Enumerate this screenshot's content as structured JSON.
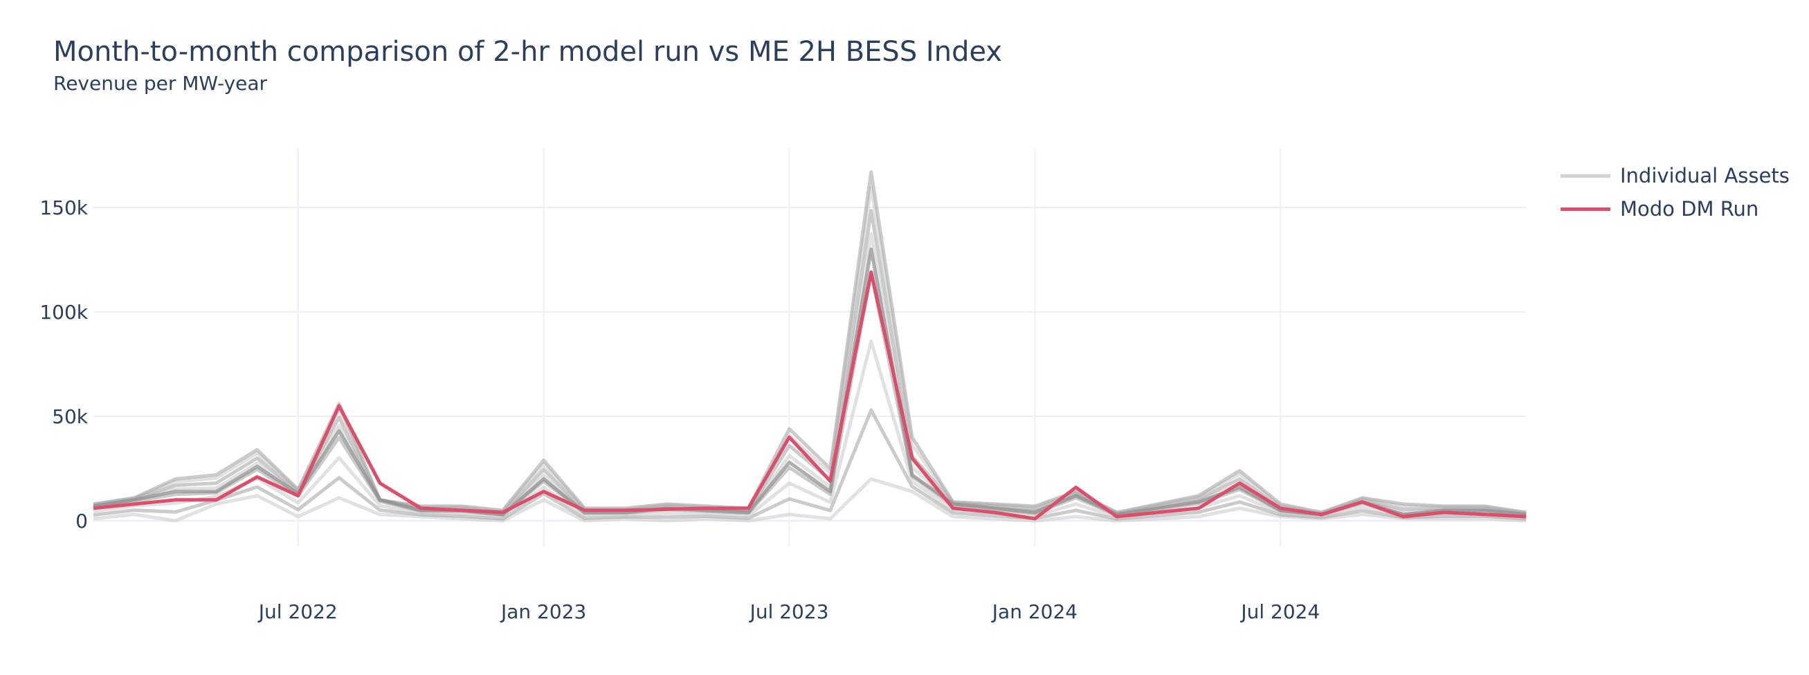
{
  "header": {
    "title": "Month-to-month comparison of 2-hr model run vs ME 2H BESS Index",
    "subtitle": "Revenue per MW-year"
  },
  "legend": {
    "items": [
      {
        "label": "Individual Assets",
        "color": "#d3d3d3"
      },
      {
        "label": "Modo DM Run",
        "color": "#dc4f6a"
      }
    ]
  },
  "axes": {
    "y_ticks": [
      "0",
      "50k",
      "100k",
      "150k"
    ],
    "x_ticks": [
      "Jul 2022",
      "Jan 2023",
      "Jul 2023",
      "Jan 2024",
      "Jul 2024"
    ]
  },
  "chart_data": {
    "type": "line",
    "title": "Month-to-month comparison of 2-hr model run vs ME 2H BESS Index",
    "subtitle": "Revenue per MW-year",
    "xlabel": "",
    "ylabel": "",
    "ylim": [
      -12000,
      178000
    ],
    "grid": true,
    "legend_position": "right-top",
    "x": [
      "2022-02",
      "2022-03",
      "2022-04",
      "2022-05",
      "2022-06",
      "2022-07",
      "2022-08",
      "2022-09",
      "2022-10",
      "2022-11",
      "2022-12",
      "2023-01",
      "2023-02",
      "2023-03",
      "2023-04",
      "2023-05",
      "2023-06",
      "2023-07",
      "2023-08",
      "2023-09",
      "2023-10",
      "2023-11",
      "2023-12",
      "2024-01",
      "2024-02",
      "2024-03",
      "2024-04",
      "2024-05",
      "2024-06",
      "2024-07",
      "2024-08",
      "2024-09",
      "2024-10",
      "2024-11",
      "2024-12",
      "2025-01"
    ],
    "x_tick_labels": [
      "Jul 2022",
      "Jan 2023",
      "Jul 2023",
      "Jan 2024",
      "Jul 2024"
    ],
    "y_tick_labels": [
      "0",
      "50k",
      "100k",
      "150k"
    ],
    "series": [
      {
        "name": "Modo DM Run",
        "color": "#dc4f6a",
        "values": [
          6000,
          8000,
          10000,
          10000,
          21000,
          12000,
          55000,
          18000,
          6000,
          5000,
          4000,
          14000,
          5000,
          5000,
          5500,
          6000,
          6000,
          40000,
          19000,
          119000,
          30000,
          6000,
          4000,
          1000,
          16000,
          2000,
          4000,
          6000,
          18000,
          6000,
          3000,
          9000,
          2000,
          4000,
          3000,
          2000
        ]
      },
      {
        "name": "Individual Assets (upper envelope)",
        "color": "#a9a9a9",
        "values": [
          8000,
          11000,
          20000,
          22000,
          34000,
          15000,
          56000,
          10000,
          7000,
          7000,
          5000,
          29000,
          6000,
          6000,
          8000,
          7000,
          6000,
          44000,
          25000,
          167000,
          40000,
          9000,
          8000,
          7000,
          14000,
          4000,
          8000,
          12000,
          24000,
          8000,
          4000,
          11000,
          8000,
          7000,
          7000,
          4000
        ]
      },
      {
        "name": "Individual Assets (typical)",
        "color": "#8c8c8c",
        "values": [
          7000,
          10000,
          14000,
          14000,
          26000,
          13000,
          43000,
          10000,
          5000,
          5000,
          3000,
          20000,
          4000,
          4000,
          6000,
          5000,
          4000,
          28000,
          14000,
          130000,
          22000,
          8000,
          6000,
          4000,
          12000,
          3000,
          6000,
          9000,
          16000,
          5000,
          3000,
          9000,
          3000,
          5000,
          5000,
          3000
        ]
      },
      {
        "name": "Individual Assets (lower envelope)",
        "color": "#d3d3d3",
        "values": [
          1000,
          3000,
          0,
          8000,
          12000,
          2000,
          11000,
          3000,
          2000,
          1000,
          0,
          10000,
          0,
          1000,
          0,
          1000,
          0,
          3000,
          1000,
          20000,
          14000,
          2000,
          1000,
          0,
          2000,
          0,
          1000,
          2000,
          6000,
          2000,
          1000,
          3000,
          1000,
          1000,
          1000,
          0
        ]
      }
    ]
  }
}
